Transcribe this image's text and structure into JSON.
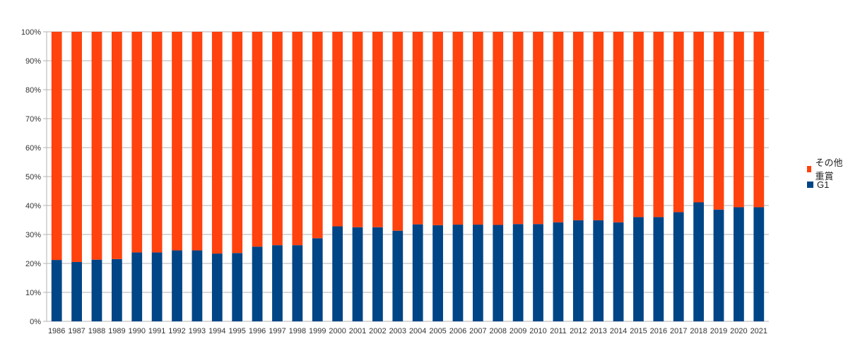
{
  "chart_data": {
    "type": "bar",
    "stacked": true,
    "percent": true,
    "categories": [
      "1986",
      "1987",
      "1988",
      "1989",
      "1990",
      "1991",
      "1992",
      "1993",
      "1994",
      "1995",
      "1996",
      "1997",
      "1998",
      "1999",
      "2000",
      "2001",
      "2002",
      "2003",
      "2004",
      "2005",
      "2006",
      "2007",
      "2008",
      "2009",
      "2010",
      "2011",
      "2012",
      "2013",
      "2014",
      "2015",
      "2016",
      "2017",
      "2018",
      "2019",
      "2020",
      "2021"
    ],
    "series": [
      {
        "name": "G1",
        "color": "#004586",
        "values": [
          21.2,
          20.5,
          21.3,
          21.5,
          23.8,
          23.8,
          24.5,
          24.5,
          23.4,
          23.6,
          25.8,
          26.3,
          26.3,
          28.7,
          32.8,
          32.5,
          32.5,
          31.3,
          33.5,
          33.2,
          33.4,
          33.4,
          33.3,
          33.6,
          33.6,
          34.2,
          34.9,
          34.9,
          34.2,
          36.0,
          36.0,
          37.7,
          41.1,
          38.6,
          39.4,
          39.4
        ]
      },
      {
        "name": "その他重賞",
        "color": "#ff420e",
        "values": [
          78.8,
          79.5,
          78.7,
          78.5,
          76.2,
          76.2,
          75.5,
          75.5,
          76.6,
          76.4,
          74.2,
          73.7,
          73.7,
          71.3,
          67.2,
          67.5,
          67.5,
          68.7,
          66.5,
          66.8,
          66.6,
          66.6,
          66.7,
          66.4,
          66.4,
          65.8,
          65.1,
          65.1,
          65.8,
          64.0,
          64.0,
          62.3,
          58.9,
          61.4,
          60.6,
          60.6
        ]
      }
    ],
    "ylim": [
      0,
      100
    ],
    "yticks": [
      "0%",
      "10%",
      "20%",
      "30%",
      "40%",
      "50%",
      "60%",
      "70%",
      "80%",
      "90%",
      "100%"
    ],
    "grid": true,
    "legend": "right",
    "title": "",
    "xlabel": "",
    "ylabel": ""
  }
}
